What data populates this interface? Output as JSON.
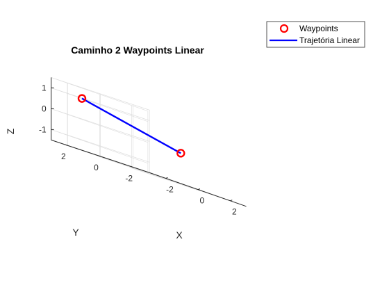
{
  "chart_data": {
    "type": "scatter3d-line",
    "title": "Caminho 2 Waypoints Linear",
    "xlabel": "X",
    "ylabel": "Y",
    "zlabel": "Z",
    "xlim": [
      -3,
      3
    ],
    "ylim": [
      -3,
      3
    ],
    "zlim": [
      -1.5,
      1.5
    ],
    "xticks": [
      -2,
      0,
      2
    ],
    "yticks": [
      -2,
      0,
      2
    ],
    "zticks": [
      -1,
      0,
      1
    ],
    "grid": true,
    "legend_position": "top-right",
    "series": [
      {
        "name": "Waypoints",
        "kind": "markers",
        "color": "#ff0000",
        "points": [
          {
            "x": -1.6,
            "y": 2.5,
            "z": 1
          },
          {
            "x": 2.5,
            "y": 0.5,
            "z": 0
          }
        ]
      },
      {
        "name": "Trajetória Linear",
        "kind": "line",
        "color": "#0000ff",
        "points": [
          {
            "x": -1.6,
            "y": 2.5,
            "z": 1
          },
          {
            "x": 2.5,
            "y": 0.5,
            "z": 0
          }
        ]
      }
    ]
  }
}
